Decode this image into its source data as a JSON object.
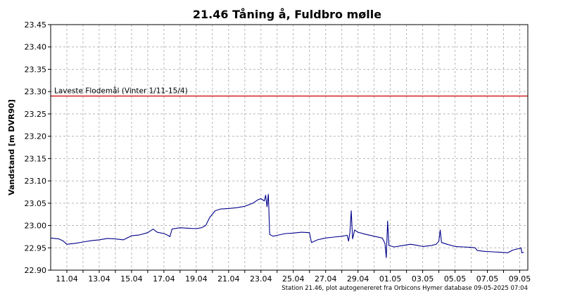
{
  "chart_data": {
    "type": "line",
    "title": "21.46  Tåning å, Fuldbro mølle",
    "ylabel": "Vandstand [m DVR90]",
    "footer": "Station 21.46, plot autogenereret fra Orbicons Hymer database 09-05-2025 07:04",
    "ylim": [
      22.9,
      23.45
    ],
    "y_ticks": [
      "22.90",
      "22.95",
      "23.00",
      "23.05",
      "23.10",
      "23.15",
      "23.20",
      "23.25",
      "23.30",
      "23.35",
      "23.40",
      "23.45"
    ],
    "x_range": [
      "2025-04-10",
      "2025-05-09T12:00"
    ],
    "x_ticks": [
      {
        "date": "2025-04-11",
        "label": "11.04"
      },
      {
        "date": "2025-04-13",
        "label": "13.04"
      },
      {
        "date": "2025-04-15",
        "label": "15.04"
      },
      {
        "date": "2025-04-17",
        "label": "17.04"
      },
      {
        "date": "2025-04-19",
        "label": "19.04"
      },
      {
        "date": "2025-04-21",
        "label": "21.04"
      },
      {
        "date": "2025-04-23",
        "label": "23.04"
      },
      {
        "date": "2025-04-25",
        "label": "25.04"
      },
      {
        "date": "2025-04-27",
        "label": "27.04"
      },
      {
        "date": "2025-04-29",
        "label": "29.04"
      },
      {
        "date": "2025-05-01",
        "label": "01.05"
      },
      {
        "date": "2025-05-03",
        "label": "03.05"
      },
      {
        "date": "2025-05-05",
        "label": "05.05"
      },
      {
        "date": "2025-05-07",
        "label": "07.05"
      },
      {
        "date": "2025-05-09",
        "label": "09.05"
      }
    ],
    "grid": true,
    "reference_line": {
      "label": "Laveste Flodemål (Vinter 1/11-15/4)",
      "value": 23.29,
      "color": "#cc0000"
    },
    "series": [
      {
        "color": "#00008b",
        "points": [
          [
            "2025-04-10T00:00",
            22.972
          ],
          [
            "2025-04-10T12:00",
            22.97
          ],
          [
            "2025-04-10T18:00",
            22.966
          ],
          [
            "2025-04-11T00:00",
            22.958
          ],
          [
            "2025-04-11T12:00",
            22.96
          ],
          [
            "2025-04-12T00:00",
            22.963
          ],
          [
            "2025-04-12T12:00",
            22.966
          ],
          [
            "2025-04-13T00:00",
            22.968
          ],
          [
            "2025-04-13T12:00",
            22.971
          ],
          [
            "2025-04-14T00:00",
            22.97
          ],
          [
            "2025-04-14T12:00",
            22.968
          ],
          [
            "2025-04-15T00:00",
            22.977
          ],
          [
            "2025-04-15T12:00",
            22.979
          ],
          [
            "2025-04-16T00:00",
            22.984
          ],
          [
            "2025-04-16T08:00",
            22.992
          ],
          [
            "2025-04-16T14:00",
            22.985
          ],
          [
            "2025-04-17T00:00",
            22.982
          ],
          [
            "2025-04-17T06:00",
            22.978
          ],
          [
            "2025-04-17T09:00",
            22.975
          ],
          [
            "2025-04-17T12:00",
            22.992
          ],
          [
            "2025-04-18T00:00",
            22.995
          ],
          [
            "2025-04-18T12:00",
            22.994
          ],
          [
            "2025-04-19T00:00",
            22.993
          ],
          [
            "2025-04-19T08:00",
            22.995
          ],
          [
            "2025-04-19T14:00",
            23.0
          ],
          [
            "2025-04-19T20:00",
            23.018
          ],
          [
            "2025-04-20T04:00",
            23.033
          ],
          [
            "2025-04-20T12:00",
            23.037
          ],
          [
            "2025-04-21T00:00",
            23.038
          ],
          [
            "2025-04-21T12:00",
            23.04
          ],
          [
            "2025-04-22T00:00",
            23.043
          ],
          [
            "2025-04-22T12:00",
            23.05
          ],
          [
            "2025-04-22T20:00",
            23.058
          ],
          [
            "2025-04-23T00:00",
            23.06
          ],
          [
            "2025-04-23T05:00",
            23.055
          ],
          [
            "2025-04-23T07:00",
            23.068
          ],
          [
            "2025-04-23T09:00",
            23.042
          ],
          [
            "2025-04-23T11:00",
            23.07
          ],
          [
            "2025-04-23T13:00",
            22.98
          ],
          [
            "2025-04-23T18:00",
            22.976
          ],
          [
            "2025-04-24T00:00",
            22.978
          ],
          [
            "2025-04-24T12:00",
            22.982
          ],
          [
            "2025-04-25T00:00",
            22.983
          ],
          [
            "2025-04-25T12:00",
            22.985
          ],
          [
            "2025-04-26T00:00",
            22.984
          ],
          [
            "2025-04-26T03:00",
            22.962
          ],
          [
            "2025-04-26T12:00",
            22.968
          ],
          [
            "2025-04-27T00:00",
            22.972
          ],
          [
            "2025-04-27T12:00",
            22.974
          ],
          [
            "2025-04-28T00:00",
            22.976
          ],
          [
            "2025-04-28T08:00",
            22.978
          ],
          [
            "2025-04-28T10:00",
            22.965
          ],
          [
            "2025-04-28T12:00",
            22.984
          ],
          [
            "2025-04-28T14:00",
            23.033
          ],
          [
            "2025-04-28T16:00",
            22.97
          ],
          [
            "2025-04-28T19:00",
            22.99
          ],
          [
            "2025-04-29T00:00",
            22.985
          ],
          [
            "2025-04-29T12:00",
            22.98
          ],
          [
            "2025-04-30T00:00",
            22.976
          ],
          [
            "2025-04-30T12:00",
            22.972
          ],
          [
            "2025-04-30T16:00",
            22.96
          ],
          [
            "2025-04-30T18:00",
            22.928
          ],
          [
            "2025-04-30T20:00",
            23.01
          ],
          [
            "2025-04-30T22:00",
            22.955
          ],
          [
            "2025-05-01T06:00",
            22.952
          ],
          [
            "2025-05-01T18:00",
            22.955
          ],
          [
            "2025-05-02T06:00",
            22.958
          ],
          [
            "2025-05-02T18:00",
            22.955
          ],
          [
            "2025-05-03T00:00",
            22.953
          ],
          [
            "2025-05-03T12:00",
            22.955
          ],
          [
            "2025-05-03T20:00",
            22.958
          ],
          [
            "2025-05-04T00:00",
            22.965
          ],
          [
            "2025-05-04T02:00",
            22.99
          ],
          [
            "2025-05-04T04:00",
            22.962
          ],
          [
            "2025-05-04T12:00",
            22.958
          ],
          [
            "2025-05-05T00:00",
            22.953
          ],
          [
            "2025-05-05T12:00",
            22.952
          ],
          [
            "2025-05-06T00:00",
            22.951
          ],
          [
            "2025-05-06T06:00",
            22.95
          ],
          [
            "2025-05-06T09:00",
            22.944
          ],
          [
            "2025-05-06T20:00",
            22.942
          ],
          [
            "2025-05-07T08:00",
            22.941
          ],
          [
            "2025-05-07T20:00",
            22.94
          ],
          [
            "2025-05-08T06:00",
            22.939
          ],
          [
            "2025-05-08T14:00",
            22.945
          ],
          [
            "2025-05-08T22:00",
            22.948
          ],
          [
            "2025-05-09T02:00",
            22.95
          ],
          [
            "2025-05-09T03:00",
            22.939
          ],
          [
            "2025-05-09T06:00",
            22.94
          ]
        ]
      }
    ]
  }
}
